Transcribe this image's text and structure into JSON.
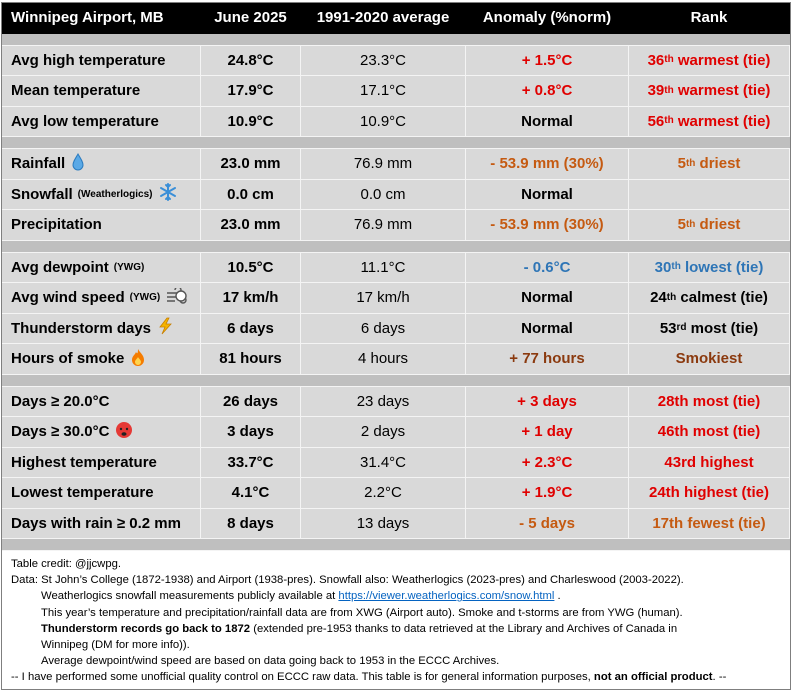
{
  "header": [
    "Winnipeg Airport, MB",
    "June 2025",
    "1991-2020 average",
    "Anomaly (%norm)",
    "Rank"
  ],
  "groups": [
    [
      {
        "label": "Avg high temperature",
        "value": "24.8°C",
        "normal": "23.3°C",
        "anomaly": "+ 1.5°C",
        "anomaly_color": "#e00000",
        "rank": {
          "num": "36",
          "sup": "th",
          "rest": " warmest (tie)"
        },
        "rank_color": "#e00000"
      },
      {
        "label": "Mean temperature",
        "value": "17.9°C",
        "normal": "17.1°C",
        "anomaly": "+ 0.8°C",
        "anomaly_color": "#e00000",
        "rank": {
          "num": "39",
          "sup": "th",
          "rest": " warmest (tie)"
        },
        "rank_color": "#e00000"
      },
      {
        "label": "Avg low temperature",
        "value": "10.9°C",
        "normal": "10.9°C",
        "anomaly": "Normal",
        "anomaly_color": "#000000",
        "rank": {
          "num": "56",
          "sup": "th",
          "rest": " warmest (tie)"
        },
        "rank_color": "#e00000"
      }
    ],
    [
      {
        "label": "Rainfall",
        "value": "23.0 mm",
        "normal": "76.9 mm",
        "anomaly": "- 53.9 mm (30%)",
        "anomaly_color": "#c55a11",
        "rank": {
          "num": "5",
          "sup": "th",
          "rest": " driest"
        },
        "rank_color": "#c55a11"
      },
      {
        "label": "Snowfall",
        "note": "(Weatherlogics)",
        "value": "0.0 cm",
        "normal": "0.0 cm",
        "anomaly": "Normal",
        "anomaly_color": "#000000"
      },
      {
        "label": "Precipitation",
        "value": "23.0 mm",
        "normal": "76.9 mm",
        "anomaly": "- 53.9 mm (30%)",
        "anomaly_color": "#c55a11",
        "rank": {
          "num": "5",
          "sup": "th",
          "rest": " driest"
        },
        "rank_color": "#c55a11"
      }
    ],
    [
      {
        "label": "Avg dewpoint",
        "note": "(YWG)",
        "value": "10.5°C",
        "normal": "11.1°C",
        "anomaly": "- 0.6°C",
        "anomaly_color": "#2e75b6",
        "rank": {
          "num": "30",
          "sup": "th",
          "rest": " lowest (tie)"
        },
        "rank_color": "#2e75b6"
      },
      {
        "label": "Avg wind speed",
        "note": "(YWG)",
        "value": "17 km/h",
        "normal": "17 km/h",
        "anomaly": "Normal",
        "anomaly_color": "#000000",
        "rank": {
          "num": "24",
          "sup": "th",
          "rest": " calmest (tie)"
        },
        "rank_color": "#000000"
      },
      {
        "label": "Thunderstorm days",
        "value": "6 days",
        "normal": "6 days",
        "anomaly": "Normal",
        "anomaly_color": "#000000",
        "rank": {
          "num": "53",
          "sup": "rd",
          "rest": " most (tie)"
        },
        "rank_color": "#000000"
      },
      {
        "label": "Hours of smoke",
        "value": "81 hours",
        "normal": "4 hours",
        "anomaly": "+ 77 hours",
        "anomaly_color": "#8b3a0f",
        "rank": "Smokiest",
        "rank_color": "#8b3a0f"
      }
    ],
    [
      {
        "label": "Days ≥ 20.0°C",
        "value": "26 days",
        "normal": "23 days",
        "anomaly": "+ 3 days",
        "anomaly_color": "#e00000",
        "rank": "28th most (tie)",
        "rank_color": "#e00000"
      },
      {
        "label": "Days ≥ 30.0°C",
        "value": "3 days",
        "normal": "2 days",
        "anomaly": "+ 1 day",
        "anomaly_color": "#e00000",
        "rank": "46th most (tie)",
        "rank_color": "#e00000"
      },
      {
        "label": "Highest temperature",
        "value": "33.7°C",
        "normal": "31.4°C",
        "anomaly": "+ 2.3°C",
        "anomaly_color": "#e00000",
        "rank": "43rd highest",
        "rank_color": "#e00000"
      },
      {
        "label": "Lowest temperature",
        "value": "4.1°C",
        "normal": "2.2°C",
        "anomaly": "+ 1.9°C",
        "anomaly_color": "#e00000",
        "rank": "24th highest (tie)",
        "rank_color": "#e00000"
      },
      {
        "label": "Days with rain ≥ 0.2 mm",
        "value": "8 days",
        "normal": "13 days",
        "anomaly": "- 5 days",
        "anomaly_color": "#c55a11",
        "rank": "17th fewest (tie)",
        "rank_color": "#c55a11"
      }
    ]
  ],
  "footer": [
    [
      {
        "text": "Table credit: @jjcwpg."
      }
    ],
    [
      {
        "text": "Data: St John’s College (1872-1938) and Airport (1938-pres). Snowfall also: Weatherlogics (2023-pres) and Charleswood (2003-2022)."
      }
    ],
    [
      {
        "text": "Weatherlogics snowfall measurements publicly available at "
      },
      {
        "text": "https://viewer.weatherlogics.com/snow.html",
        "style": "link"
      },
      {
        "text": " ."
      }
    ],
    [
      {
        "text": "This year’s temperature and precipitation/rainfall data are from XWG (Airport auto). Smoke and t-storms are from YWG (human)."
      }
    ],
    [
      {
        "text": "Thunderstorm records go back to 1872",
        "style": "bold"
      },
      {
        "text": " (extended pre-1953 thanks to data retrieved at the Library and Archives of Canada in"
      }
    ],
    [
      {
        "text": "Winnipeg (DM for more info))."
      }
    ],
    [
      {
        "text": "Average dewpoint/wind speed are based on data going back to 1953 in the ECCC Archives."
      }
    ],
    [
      {
        "text": "-- I have performed some unofficial quality control on ECCC raw data. This table is for general information purposes, "
      },
      {
        "text": "not an official product",
        "style": "bold"
      },
      {
        "text": ". --"
      }
    ]
  ]
}
